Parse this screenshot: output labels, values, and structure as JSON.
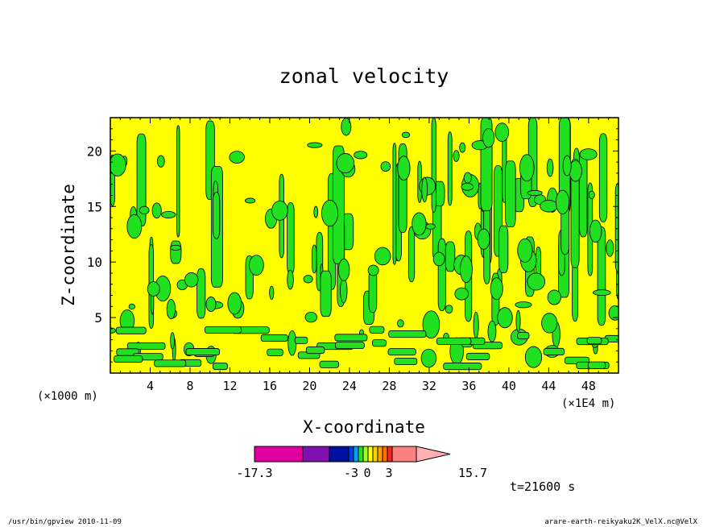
{
  "chart_data": {
    "type": "heatmap",
    "title": "zonal velocity",
    "xlabel": "X-coordinate",
    "ylabel": "Z-coordinate",
    "x_unit_left": "(×1000 m)",
    "x_unit_right": "(×1E4 m)",
    "xlim": [
      0,
      51
    ],
    "ylim": [
      0,
      23
    ],
    "x_ticks": [
      4,
      8,
      12,
      16,
      20,
      24,
      28,
      32,
      36,
      40,
      44,
      48
    ],
    "y_ticks": [
      5,
      10,
      15,
      20
    ],
    "colorbar": {
      "levels": [
        -17.3,
        -3,
        0,
        3,
        15.7
      ],
      "tick_labels": [
        "-17.3",
        "-3",
        "0",
        "3",
        "15.7"
      ],
      "colors": [
        "#e000a0",
        "#8010b0",
        "#0010a0",
        "#0040e0",
        "#00a0ff",
        "#20e020",
        "#a0ff20",
        "#ffff00",
        "#ffd000",
        "#ffa000",
        "#ff7000",
        "#ff2020",
        "#ff8080",
        "#ffb0b0"
      ],
      "extend": "max"
    },
    "field_colors": {
      "negative": "#20e020",
      "positive": "#ffff00",
      "contour": "#000000"
    },
    "time_label": "t=21600 s",
    "grid": false
  },
  "footer": {
    "left": "/usr/bin/gpview  2010-11-09",
    "right": "arare-earth-reikyaku2K_VelX.nc@VelX"
  }
}
